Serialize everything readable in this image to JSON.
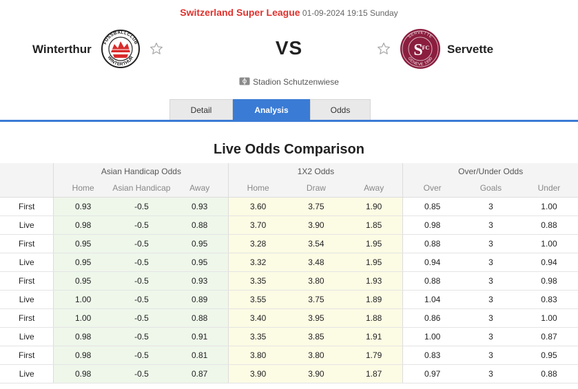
{
  "match": {
    "league": "Switzerland Super League",
    "datetime": "01-09-2024 19:15 Sunday",
    "home_team": "Winterthur",
    "away_team": "Servette",
    "vs": "VS",
    "venue": "Stadion Schutzenwiese"
  },
  "logos": {
    "home_text_top": "FUSSBALLCLUB",
    "home_text_bottom": "WINTERTHUR",
    "away_text_top": "SERVETTE",
    "away_text_bottom": "GENEVE 1890",
    "away_monogram_s": "S",
    "away_monogram_fc": "FC",
    "home_color": "#d92b2b",
    "away_color": "#8b1e3f"
  },
  "tabs": [
    {
      "label": "Detail"
    },
    {
      "label": "Analysis"
    },
    {
      "label": "Odds"
    }
  ],
  "section_title": "Live Odds Comparison",
  "table": {
    "groups": [
      "Asian Handicap Odds",
      "1X2 Odds",
      "Over/Under Odds"
    ],
    "subheaders": [
      "Home",
      "Asian Handicap",
      "Away",
      "Home",
      "Draw",
      "Away",
      "Over",
      "Goals",
      "Under"
    ],
    "rows": [
      {
        "label": "First",
        "cells": [
          "0.93",
          "-0.5",
          "0.93",
          "3.60",
          "3.75",
          "1.90",
          "0.85",
          "3",
          "1.00"
        ]
      },
      {
        "label": "Live",
        "cells": [
          "0.98",
          "-0.5",
          "0.88",
          "3.70",
          "3.90",
          "1.85",
          "0.98",
          "3",
          "0.88"
        ]
      },
      {
        "label": "First",
        "cells": [
          "0.95",
          "-0.5",
          "0.95",
          "3.28",
          "3.54",
          "1.95",
          "0.88",
          "3",
          "1.00"
        ]
      },
      {
        "label": "Live",
        "cells": [
          "0.95",
          "-0.5",
          "0.95",
          "3.32",
          "3.48",
          "1.95",
          "0.94",
          "3",
          "0.94"
        ]
      },
      {
        "label": "First",
        "cells": [
          "0.95",
          "-0.5",
          "0.93",
          "3.35",
          "3.80",
          "1.93",
          "0.88",
          "3",
          "0.98"
        ]
      },
      {
        "label": "Live",
        "cells": [
          "1.00",
          "-0.5",
          "0.89",
          "3.55",
          "3.75",
          "1.89",
          "1.04",
          "3",
          "0.83"
        ]
      },
      {
        "label": "First",
        "cells": [
          "1.00",
          "-0.5",
          "0.88",
          "3.40",
          "3.95",
          "1.88",
          "0.86",
          "3",
          "1.00"
        ]
      },
      {
        "label": "Live",
        "cells": [
          "0.98",
          "-0.5",
          "0.91",
          "3.35",
          "3.85",
          "1.91",
          "1.00",
          "3",
          "0.87"
        ]
      },
      {
        "label": "First",
        "cells": [
          "0.98",
          "-0.5",
          "0.81",
          "3.80",
          "3.80",
          "1.79",
          "0.83",
          "3",
          "0.95"
        ]
      },
      {
        "label": "Live",
        "cells": [
          "0.98",
          "-0.5",
          "0.87",
          "3.90",
          "3.90",
          "1.87",
          "0.97",
          "3",
          "0.88"
        ]
      }
    ]
  },
  "colors": {
    "league_red": "#e0312c",
    "tab_active": "#3a7bd5",
    "asian_bg": "#eef7ea",
    "x12_bg": "#fcfbe4"
  },
  "icons": {
    "favorite": "star-outline-icon",
    "venue": "stadium-icon"
  }
}
